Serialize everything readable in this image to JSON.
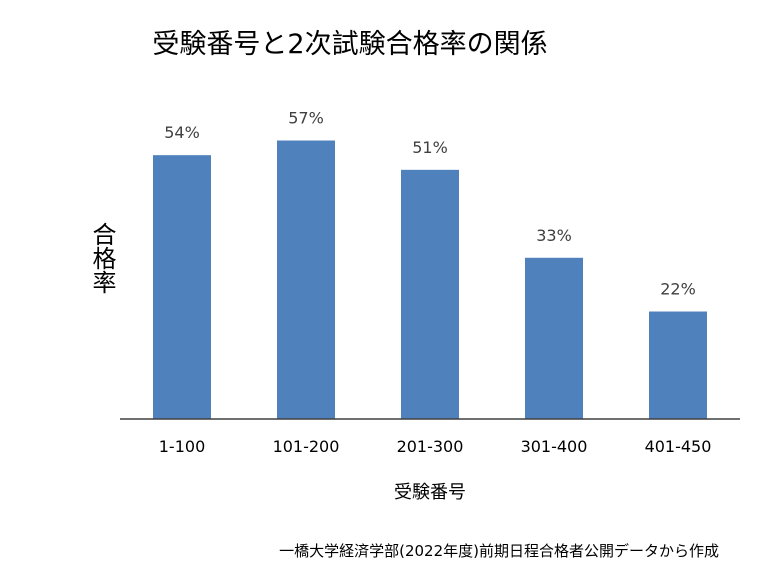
{
  "chart_data": {
    "type": "bar",
    "title": "受験番号と2次試験合格率の関係",
    "xlabel": "受験番号",
    "ylabel": "合格率",
    "categories": [
      "1-100",
      "101-200",
      "201-300",
      "301-400",
      "401-450"
    ],
    "values": [
      54,
      57,
      51,
      33,
      22
    ],
    "value_labels": [
      "54%",
      "57%",
      "51%",
      "33%",
      "22%"
    ],
    "ylim": [
      0,
      70
    ],
    "grid": false,
    "legend": "none",
    "bar_color": "#4f81bd"
  },
  "source_note": "一橋大学経済学部(2022年度)前期日程合格者公開データから作成"
}
